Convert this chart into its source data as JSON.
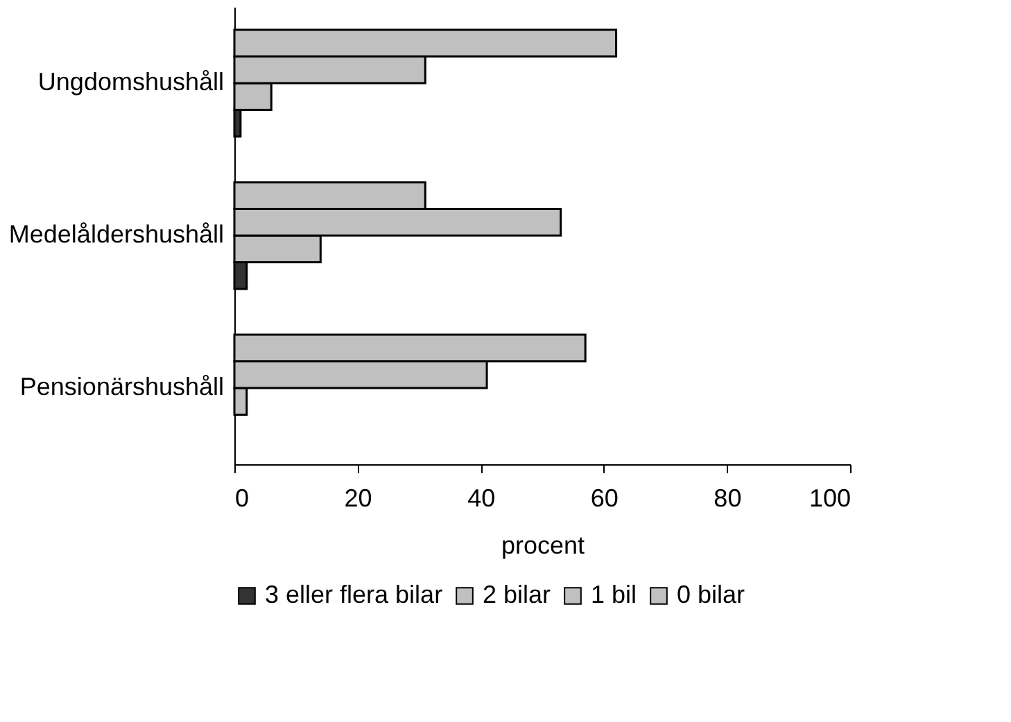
{
  "chart_data": {
    "type": "bar",
    "orientation": "horizontal",
    "xlabel": "procent",
    "categories": [
      "Ungdomshushåll",
      "Medelåldershushåll",
      "Pensionärshushåll"
    ],
    "series": [
      {
        "name": "3 eller flera bilar",
        "color": "#333333",
        "values": [
          1,
          2,
          null
        ]
      },
      {
        "name": "2 bilar",
        "color": "#c0c0c0",
        "values": [
          6,
          14,
          2
        ]
      },
      {
        "name": "1 bil",
        "color": "#c0c0c0",
        "values": [
          31,
          53,
          41
        ]
      },
      {
        "name": "0 bilar",
        "color": "#c0c0c0",
        "values": [
          62,
          31,
          57
        ]
      }
    ],
    "xlim": [
      0,
      100
    ],
    "xticks": [
      0,
      20,
      40,
      60,
      80,
      100
    ],
    "grid": false,
    "legend": "bottom"
  }
}
